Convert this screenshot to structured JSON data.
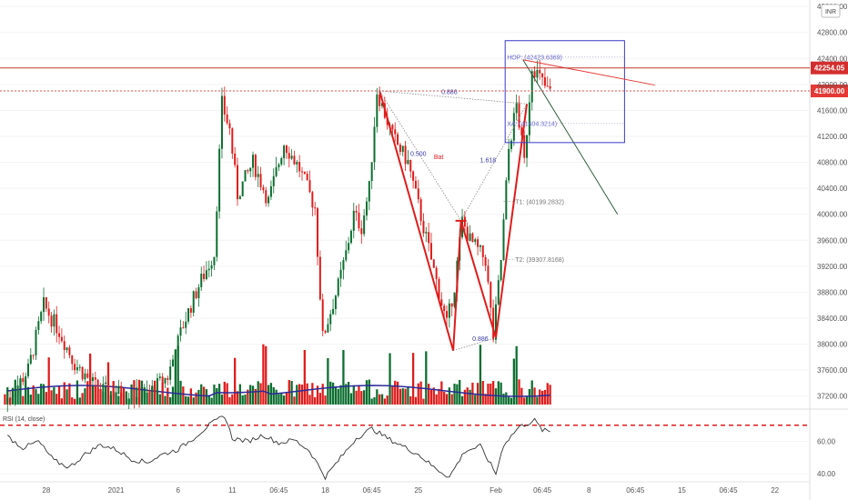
{
  "chart_data": {
    "type": "candlestick",
    "currency_badge": "INR",
    "y_ticks": [
      37200,
      37600,
      38000,
      38400,
      38800,
      39200,
      39600,
      40000,
      40400,
      40800,
      41200,
      41600,
      42000,
      42400,
      42800,
      43200
    ],
    "y_tick_labels": [
      "37200.00",
      "37600.00",
      "38000.00",
      "38400.00",
      "38800.00",
      "39200.00",
      "39600.00",
      "40000.00",
      "40400.00",
      "40800.00",
      "41200.00",
      "41600.00",
      "42000.00",
      "42400.00",
      "42800.00",
      "43200.00"
    ],
    "ylim": [
      37000,
      43300
    ],
    "x_ticks": [
      {
        "label": "28",
        "i": 5
      },
      {
        "label": "2021",
        "i": 14
      },
      {
        "label": "6",
        "i": 22
      },
      {
        "label": "11",
        "i": 29
      },
      {
        "label": "06:45",
        "i": 35
      },
      {
        "label": "18",
        "i": 41
      },
      {
        "label": "06:45",
        "i": 47
      },
      {
        "label": "25",
        "i": 53
      },
      {
        "label": "Feb",
        "i": 63
      },
      {
        "label": "06:45",
        "i": 69
      },
      {
        "label": "8",
        "i": 75
      },
      {
        "label": "06:45",
        "i": 81
      },
      {
        "label": "15",
        "i": 87
      },
      {
        "label": "06:45",
        "i": 93
      },
      {
        "label": "22",
        "i": 99
      }
    ],
    "x_count": 104,
    "price_series": [
      [
        0,
        37100
      ],
      [
        3,
        37600
      ],
      [
        5,
        38600
      ],
      [
        7,
        38200
      ],
      [
        9,
        37700
      ],
      [
        12,
        37300
      ],
      [
        15,
        37250
      ],
      [
        18,
        37200
      ],
      [
        21,
        37500
      ],
      [
        23,
        38300
      ],
      [
        25,
        38900
      ],
      [
        27,
        39400
      ],
      [
        28,
        41700
      ],
      [
        29,
        41300
      ],
      [
        30,
        40300
      ],
      [
        32,
        40800
      ],
      [
        34,
        40200
      ],
      [
        36,
        41100
      ],
      [
        38,
        40700
      ],
      [
        40,
        40100
      ],
      [
        41,
        38100
      ],
      [
        43,
        38900
      ],
      [
        44,
        39400
      ],
      [
        45,
        40000
      ],
      [
        46,
        39800
      ],
      [
        47,
        40400
      ],
      [
        48,
        41900
      ],
      [
        50,
        41200
      ],
      [
        52,
        40800
      ],
      [
        54,
        39800
      ],
      [
        56,
        38800
      ],
      [
        57,
        38300
      ],
      [
        58,
        38900
      ],
      [
        59,
        39900
      ],
      [
        60,
        39600
      ],
      [
        62,
        39300
      ],
      [
        63,
        38100
      ],
      [
        64,
        39300
      ],
      [
        65,
        41000
      ],
      [
        66,
        41700
      ],
      [
        67,
        40800
      ],
      [
        68,
        42300
      ],
      [
        69,
        42100
      ],
      [
        70,
        41900
      ]
    ],
    "current_price": "42254.05",
    "current_price_value": 42254.05,
    "level_price": "41900.00",
    "level_price_value": 41900.0,
    "pattern": {
      "name": "Bat",
      "points": [
        [
          48,
          41900
        ],
        [
          57.5,
          37900
        ],
        [
          58.5,
          39900
        ],
        [
          63,
          38100
        ],
        [
          67,
          41700
        ]
      ],
      "ratios": [
        {
          "label": "0.500",
          "i": 53,
          "v": 40900
        },
        {
          "label": "0.886",
          "i": 57,
          "v": 41850
        },
        {
          "label": "1.618",
          "i": 62,
          "v": 40800
        },
        {
          "label": "0.886",
          "i": 61,
          "v": 38050
        }
      ],
      "levels": [
        {
          "label": "HOP: (42423.6369)",
          "value": 42423.6369
        },
        {
          "label": "XA: (41404.3214)",
          "value": 41404.3214
        },
        {
          "label": "T1: (40199.2832)",
          "value": 40199.2832
        },
        {
          "label": "T2: (39307.8168)",
          "value": 39307.8168
        }
      ]
    },
    "rsi": {
      "label": "RSI (14, close)",
      "y_ticks": [
        60,
        40
      ],
      "y_tick_labels": [
        "60.00",
        "40.00"
      ],
      "ylim": [
        35,
        80
      ],
      "overbought": 70,
      "series": [
        [
          0,
          63
        ],
        [
          2,
          56
        ],
        [
          4,
          60
        ],
        [
          6,
          48
        ],
        [
          8,
          44
        ],
        [
          10,
          52
        ],
        [
          12,
          58
        ],
        [
          14,
          55
        ],
        [
          16,
          49
        ],
        [
          18,
          47
        ],
        [
          20,
          52
        ],
        [
          22,
          55
        ],
        [
          24,
          62
        ],
        [
          26,
          70
        ],
        [
          28,
          76
        ],
        [
          29,
          62
        ],
        [
          31,
          60
        ],
        [
          33,
          64
        ],
        [
          35,
          59
        ],
        [
          37,
          61
        ],
        [
          39,
          54
        ],
        [
          41,
          38
        ],
        [
          43,
          50
        ],
        [
          45,
          62
        ],
        [
          47,
          68
        ],
        [
          49,
          62
        ],
        [
          51,
          57
        ],
        [
          53,
          52
        ],
        [
          55,
          44
        ],
        [
          57,
          38
        ],
        [
          59,
          54
        ],
        [
          61,
          57
        ],
        [
          63,
          40
        ],
        [
          64,
          58
        ],
        [
          66,
          69
        ],
        [
          68,
          73
        ],
        [
          69,
          67
        ],
        [
          70,
          66
        ]
      ]
    }
  }
}
